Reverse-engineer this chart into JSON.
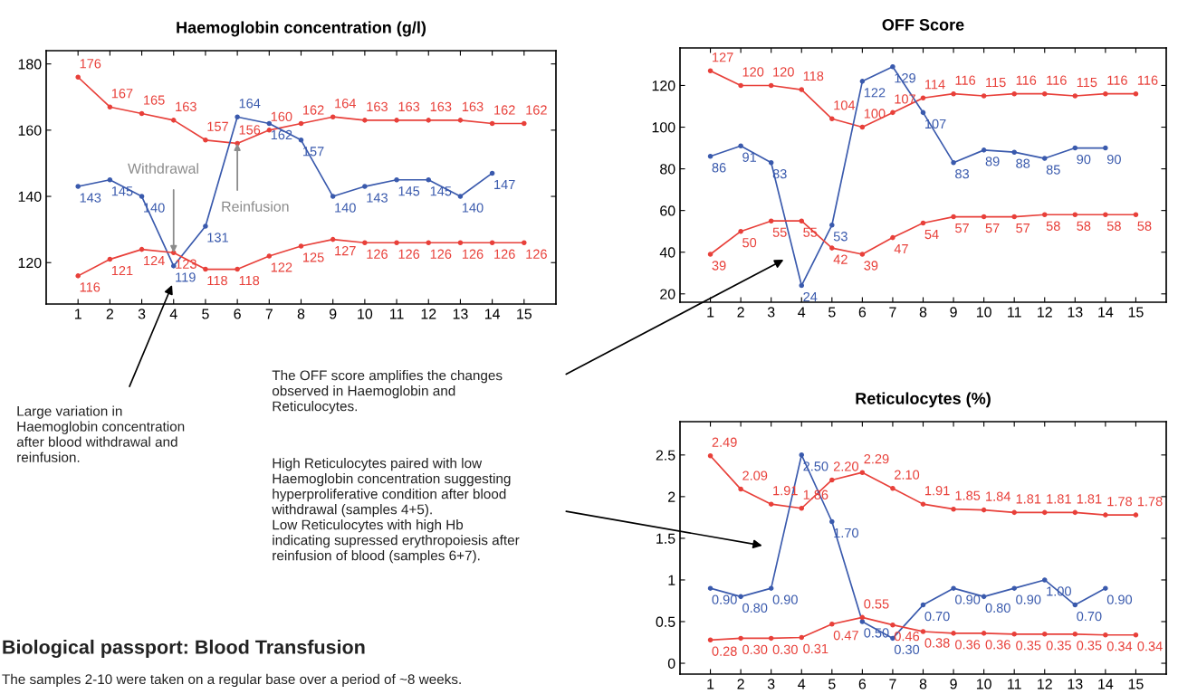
{
  "chart_data": [
    {
      "type": "line",
      "title": "Haemoglobin concentration (g/l)",
      "x": [
        1,
        2,
        3,
        4,
        5,
        6,
        7,
        8,
        9,
        10,
        11,
        12,
        13,
        14,
        15
      ],
      "xlim": [
        0,
        16
      ],
      "xticks": [
        1,
        2,
        3,
        4,
        5,
        6,
        7,
        8,
        9,
        10,
        11,
        12,
        13,
        14,
        15
      ],
      "ylim": [
        107.5,
        184
      ],
      "yticks": [
        120,
        140,
        160,
        180
      ],
      "grid": false,
      "marker": "circle",
      "line_style": "solid",
      "data_labels": true,
      "annotations": [
        {
          "text": "Withdrawal",
          "x": 4,
          "y": 123
        },
        {
          "text": "Reinfusion",
          "x": 6,
          "y": 156
        }
      ],
      "series": [
        {
          "color": "#e8403a",
          "values": [
            176,
            167,
            165,
            163,
            157,
            156,
            160,
            162,
            164,
            163,
            163,
            163,
            163,
            162,
            162
          ]
        },
        {
          "color": "#3a5aad",
          "values": [
            143,
            145,
            140,
            119,
            131,
            164,
            162,
            157,
            140,
            143,
            145,
            145,
            140,
            147,
            null
          ]
        },
        {
          "color": "#e8403a",
          "values": [
            116,
            121,
            124,
            123,
            118,
            118,
            122,
            125,
            127,
            126,
            126,
            126,
            126,
            126,
            126
          ]
        }
      ]
    },
    {
      "type": "line",
      "title": "OFF Score",
      "x": [
        1,
        2,
        3,
        4,
        5,
        6,
        7,
        8,
        9,
        10,
        11,
        12,
        13,
        14,
        15
      ],
      "xlim": [
        0,
        16
      ],
      "xticks": [
        1,
        2,
        3,
        4,
        5,
        6,
        7,
        8,
        9,
        10,
        11,
        12,
        13,
        14,
        15
      ],
      "ylim": [
        16,
        138
      ],
      "yticks": [
        20,
        40,
        60,
        80,
        100,
        120
      ],
      "grid": false,
      "marker": "circle",
      "line_style": "solid",
      "data_labels": true,
      "series": [
        {
          "color": "#e8403a",
          "values": [
            127,
            120,
            120,
            118,
            104,
            100,
            107,
            114,
            116,
            115,
            116,
            116,
            115,
            116,
            116
          ]
        },
        {
          "color": "#3a5aad",
          "values": [
            86,
            91,
            83,
            24,
            53,
            122,
            129,
            107,
            83,
            89,
            88,
            85,
            90,
            90,
            null
          ]
        },
        {
          "color": "#e8403a",
          "values": [
            39,
            50,
            55,
            55,
            42,
            39,
            47,
            54,
            57,
            57,
            57,
            58,
            58,
            58,
            58
          ]
        }
      ]
    },
    {
      "type": "line",
      "title": "Reticulocytes (%)",
      "x": [
        1,
        2,
        3,
        4,
        5,
        6,
        7,
        8,
        9,
        10,
        11,
        12,
        13,
        14,
        15
      ],
      "xlim": [
        0,
        16
      ],
      "xticks": [
        1,
        2,
        3,
        4,
        5,
        6,
        7,
        8,
        9,
        10,
        11,
        12,
        13,
        14,
        15
      ],
      "ylim": [
        -0.13,
        2.9
      ],
      "yticks": [
        0,
        0.5,
        1,
        1.5,
        2,
        2.5
      ],
      "grid": false,
      "marker": "circle",
      "line_style": "solid",
      "series": [
        {
          "color": "#e8403a",
          "values": [
            2.49,
            2.09,
            1.91,
            1.86,
            2.2,
            2.29,
            2.1,
            1.91,
            1.85,
            1.84,
            1.81,
            1.81,
            1.81,
            1.78,
            1.78
          ],
          "value_labels": [
            "2.49",
            "2.09",
            "1.91",
            "1.86",
            "2.20",
            "2.29",
            "2.10",
            "1.91",
            "1.85",
            "1.84",
            "1.81",
            "1.81",
            "1.81",
            "1.78",
            "1.78"
          ]
        },
        {
          "color": "#3a5aad",
          "values": [
            0.9,
            0.8,
            0.9,
            2.5,
            1.7,
            0.5,
            0.3,
            0.7,
            0.9,
            0.8,
            0.9,
            1.0,
            0.7,
            0.9,
            null
          ],
          "value_labels": [
            "0.90",
            "0.80",
            "0.90",
            "2.50",
            "1.70",
            "0.50",
            "0.30",
            "0.70",
            "0.90",
            "0.80",
            "0.90",
            "1.00",
            "0.70",
            "0.90",
            null
          ]
        },
        {
          "color": "#e8403a",
          "values": [
            0.28,
            0.3,
            0.3,
            0.31,
            0.47,
            0.55,
            0.46,
            0.38,
            0.36,
            0.36,
            0.35,
            0.35,
            0.35,
            0.34,
            0.34
          ],
          "value_labels": [
            "0.28",
            "0.30",
            "0.30",
            "0.31",
            "0.47",
            "0.55",
            "0.46",
            "0.38",
            "0.36",
            "0.36",
            "0.35",
            "0.35",
            "0.35",
            "0.34",
            "0.34"
          ]
        }
      ]
    },
    {
      "type": "other",
      "title": "Biological passport: Blood Transfusion",
      "subtitle": "The samples 2-10 were taken on a regular base over a period of ~8 weeks.",
      "annotations": [
        "Large variation in\nHaemoglobin concentration\nafter blood withdrawal and\nreinfusion.",
        "The OFF score amplifies the changes\nobserved in Haemoglobin and\nReticulocytes.",
        "High Reticulocytes paired with low\nHaemoglobin concentration suggesting\nhyperproliferative condition after blood\nwithdrawal (samples 4+5).\nLow Reticulocytes with high Hb\nindicating supressed erythropoiesis after\nreinfusion of blood (samples 6+7)."
      ]
    }
  ]
}
